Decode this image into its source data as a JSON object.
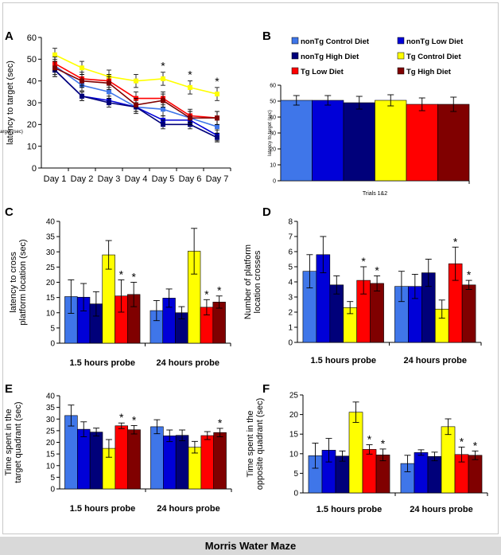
{
  "caption": "Morris Water Maze",
  "series_names": [
    "nonTg Control Diet",
    "nonTg Low Diet",
    "nonTg High Diet",
    "Tg Control Diet",
    "Tg Low Diet",
    "Tg High Diet"
  ],
  "colors": {
    "nonTg Control Diet": "#3f76e9",
    "nonTg Low Diet": "#0000d8",
    "nonTg High Diet": "#00007a",
    "Tg Control Diet": "#ffff00",
    "Tg Low Diet": "#ff0000",
    "Tg High Diet": "#800000"
  },
  "chart_data": [
    {
      "panel": "A",
      "type": "line",
      "x": [
        "Day 1",
        "Day 2",
        "Day 3",
        "Day 4",
        "Day 5",
        "Day 6",
        "Day 7"
      ],
      "ylabel": "latency to target (sec)",
      "xlabel": "",
      "ylim": [
        0,
        60
      ],
      "yticks": [
        0,
        10,
        20,
        30,
        40,
        50,
        60
      ],
      "series": [
        {
          "name": "nonTg Control Diet",
          "values": [
            47,
            38,
            35,
            28,
            27,
            23,
            19
          ],
          "err": [
            3,
            2.5,
            3,
            3,
            3,
            3,
            3
          ]
        },
        {
          "name": "nonTg Low Diet",
          "values": [
            45,
            33,
            31,
            28,
            22,
            22,
            15
          ],
          "err": [
            3,
            2,
            2,
            2,
            2,
            2,
            2.5
          ]
        },
        {
          "name": "nonTg High Diet",
          "values": [
            45,
            33,
            30,
            28,
            20,
            20,
            14
          ],
          "err": [
            3,
            2,
            2,
            2,
            2,
            2,
            2
          ]
        },
        {
          "name": "Tg Control Diet",
          "values": [
            52,
            46,
            42,
            40,
            41,
            37,
            34
          ],
          "err": [
            3,
            3,
            3,
            3,
            3,
            3,
            3
          ]
        },
        {
          "name": "Tg Low Diet",
          "values": [
            48,
            41,
            40,
            32,
            32,
            24,
            23
          ],
          "err": [
            3,
            3,
            3,
            3,
            3,
            3,
            3
          ]
        },
        {
          "name": "Tg High Diet",
          "values": [
            46,
            40,
            39,
            29,
            31,
            23,
            23
          ],
          "err": [
            3,
            3,
            3,
            3,
            3,
            3,
            3
          ]
        }
      ],
      "annotations": [
        {
          "text": "*",
          "x": "Day 5"
        },
        {
          "text": "*",
          "x": "Day 6"
        },
        {
          "text": "*",
          "x": "Day 7"
        }
      ]
    },
    {
      "panel": "B",
      "type": "bar",
      "categories": [
        "Trials 1&2"
      ],
      "ylabel": "latency to target (sec)",
      "xlabel": "Trials 1&2",
      "ylim": [
        0,
        60
      ],
      "yticks": [
        0,
        10,
        20,
        30,
        40,
        50,
        60
      ],
      "legend": "top",
      "series": [
        {
          "name": "nonTg Control Diet",
          "values": [
            50.5
          ],
          "err": [
            3
          ]
        },
        {
          "name": "nonTg Low Diet",
          "values": [
            50.5
          ],
          "err": [
            3
          ]
        },
        {
          "name": "nonTg High Diet",
          "values": [
            49
          ],
          "err": [
            4
          ]
        },
        {
          "name": "Tg Control Diet",
          "values": [
            50.5
          ],
          "err": [
            3.5
          ]
        },
        {
          "name": "Tg Low Diet",
          "values": [
            48
          ],
          "err": [
            4
          ]
        },
        {
          "name": "Tg High Diet",
          "values": [
            48
          ],
          "err": [
            4.5
          ]
        }
      ],
      "stars": []
    },
    {
      "panel": "C",
      "type": "bar",
      "categories": [
        "1.5 hours probe",
        "24 hours probe"
      ],
      "ylabel": "latency to cross platform location (sec)",
      "ylabel_lines": [
        "latency to cross",
        "platform location (sec)"
      ],
      "ylim": [
        0,
        40
      ],
      "yticks": [
        0,
        5,
        10,
        15,
        20,
        25,
        30,
        35,
        40
      ],
      "series": [
        {
          "name": "nonTg Control Diet",
          "values": [
            15.3,
            10.7
          ],
          "err": [
            5.5,
            3.3
          ]
        },
        {
          "name": "nonTg Low Diet",
          "values": [
            15.1,
            14.8
          ],
          "err": [
            4.5,
            3
          ]
        },
        {
          "name": "nonTg High Diet",
          "values": [
            12.9,
            10
          ],
          "err": [
            4,
            2
          ]
        },
        {
          "name": "Tg Control Diet",
          "values": [
            29,
            30.2
          ],
          "err": [
            4.7,
            7.5
          ]
        },
        {
          "name": "Tg Low Diet",
          "values": [
            15.5,
            11.8
          ],
          "err": [
            5.3,
            2.5
          ]
        },
        {
          "name": "Tg High Diet",
          "values": [
            16,
            13.5
          ],
          "err": [
            4,
            2
          ]
        }
      ],
      "stars": [
        {
          "series": "Tg Low Diet",
          "group": 0
        },
        {
          "series": "Tg High Diet",
          "group": 0
        },
        {
          "series": "Tg Low Diet",
          "group": 1
        },
        {
          "series": "Tg High Diet",
          "group": 1
        }
      ]
    },
    {
      "panel": "D",
      "type": "bar",
      "categories": [
        "1.5 hours probe",
        "24 hours probe"
      ],
      "ylabel": "Number of platform location crosses",
      "ylabel_lines": [
        "Number of platform",
        "location crosses"
      ],
      "ylim": [
        0,
        8
      ],
      "yticks": [
        0,
        1,
        2,
        3,
        4,
        5,
        6,
        7,
        8
      ],
      "series": [
        {
          "name": "nonTg Control Diet",
          "values": [
            4.7,
            3.7
          ],
          "err": [
            1.1,
            1
          ]
        },
        {
          "name": "nonTg Low Diet",
          "values": [
            5.8,
            3.7
          ],
          "err": [
            1.2,
            0.8
          ]
        },
        {
          "name": "nonTg High Diet",
          "values": [
            3.8,
            4.6
          ],
          "err": [
            0.6,
            0.9
          ]
        },
        {
          "name": "Tg Control Diet",
          "values": [
            2.3,
            2.2
          ],
          "err": [
            0.4,
            0.6
          ]
        },
        {
          "name": "Tg Low Diet",
          "values": [
            4.1,
            5.2
          ],
          "err": [
            0.9,
            1.1
          ]
        },
        {
          "name": "Tg High Diet",
          "values": [
            3.9,
            3.8
          ],
          "err": [
            0.5,
            0.3
          ]
        }
      ],
      "stars": [
        {
          "series": "Tg Low Diet",
          "group": 0
        },
        {
          "series": "Tg High Diet",
          "group": 0
        },
        {
          "series": "Tg Low Diet",
          "group": 1
        },
        {
          "series": "Tg High Diet",
          "group": 1
        }
      ]
    },
    {
      "panel": "E",
      "type": "bar",
      "categories": [
        "1.5 hours probe",
        "24 hours probe"
      ],
      "ylabel": "Time spent in the target quadrant (sec)",
      "ylabel_lines": [
        "Time spent in the",
        "target quadrant (sec)"
      ],
      "ylim": [
        0,
        40
      ],
      "yticks": [
        0,
        5,
        10,
        15,
        20,
        25,
        30,
        35,
        40
      ],
      "series": [
        {
          "name": "nonTg Control Diet",
          "values": [
            31.5,
            26.7
          ],
          "err": [
            4.5,
            3
          ]
        },
        {
          "name": "nonTg Low Diet",
          "values": [
            25.6,
            22.8
          ],
          "err": [
            3.2,
            2.5
          ]
        },
        {
          "name": "nonTg High Diet",
          "values": [
            24.4,
            23
          ],
          "err": [
            1.7,
            2.3
          ]
        },
        {
          "name": "Tg Control Diet",
          "values": [
            17.4,
            17.9
          ],
          "err": [
            3.8,
            2.5
          ]
        },
        {
          "name": "Tg Low Diet",
          "values": [
            27.1,
            22.9
          ],
          "err": [
            1.2,
            1.7
          ]
        },
        {
          "name": "Tg High Diet",
          "values": [
            25.4,
            24.2
          ],
          "err": [
            1.8,
            1.8
          ]
        }
      ],
      "stars": [
        {
          "series": "Tg Low Diet",
          "group": 0
        },
        {
          "series": "Tg High Diet",
          "group": 0
        },
        {
          "series": "Tg High Diet",
          "group": 1
        }
      ]
    },
    {
      "panel": "F",
      "type": "bar",
      "categories": [
        "1.5 hours probe",
        "24 hours probe"
      ],
      "ylabel": "Time spent in the opposite quadrant (sec)",
      "ylabel_lines": [
        "Time spent in the",
        "opposite quadrant (sec)"
      ],
      "ylim": [
        0,
        25
      ],
      "yticks": [
        0,
        5,
        10,
        15,
        20,
        25
      ],
      "series": [
        {
          "name": "nonTg Control Diet",
          "values": [
            9.5,
            7.5
          ],
          "err": [
            3.2,
            2.1
          ]
        },
        {
          "name": "nonTg Low Diet",
          "values": [
            10.9,
            10.3
          ],
          "err": [
            3,
            0.7
          ]
        },
        {
          "name": "nonTg High Diet",
          "values": [
            9.4,
            9.3
          ],
          "err": [
            1.3,
            1.1
          ]
        },
        {
          "name": "Tg Control Diet",
          "values": [
            20.6,
            16.9
          ],
          "err": [
            2.6,
            2
          ]
        },
        {
          "name": "Tg Low Diet",
          "values": [
            11.1,
            9.8
          ],
          "err": [
            1.2,
            1.9
          ]
        },
        {
          "name": "Tg High Diet",
          "values": [
            9.7,
            9.6
          ],
          "err": [
            1.5,
            1.1
          ]
        }
      ],
      "stars": [
        {
          "series": "Tg Low Diet",
          "group": 0
        },
        {
          "series": "Tg High Diet",
          "group": 0
        },
        {
          "series": "Tg Low Diet",
          "group": 1
        },
        {
          "series": "Tg High Diet",
          "group": 1
        }
      ]
    }
  ]
}
